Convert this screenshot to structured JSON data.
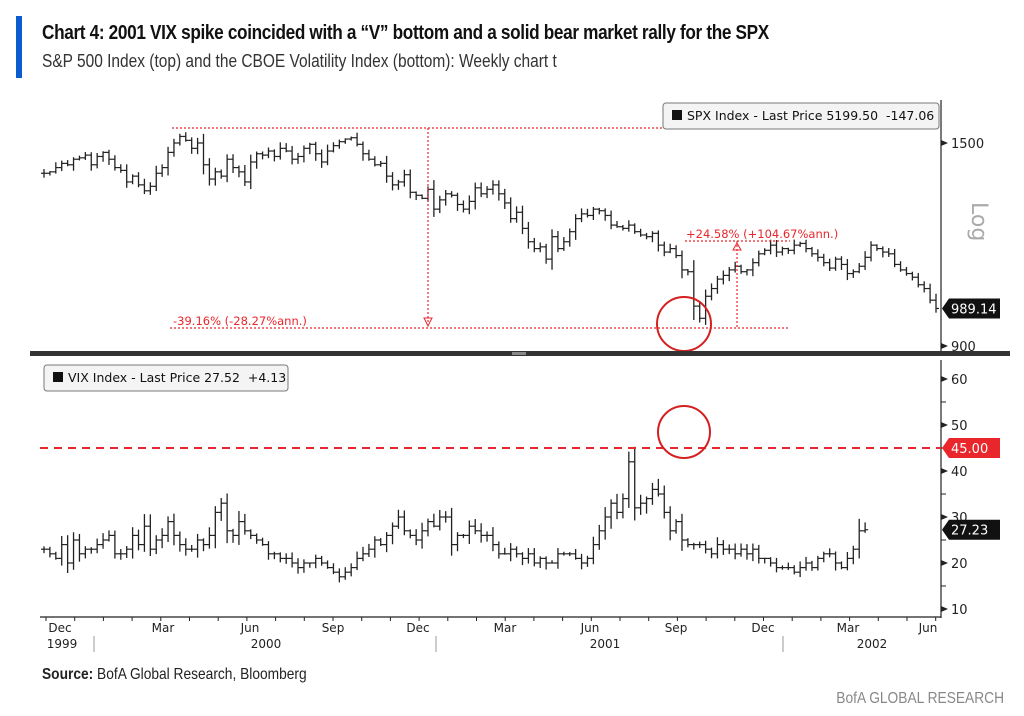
{
  "header": {
    "title": "Chart 4: 2001 VIX spike coincided with a “V” bottom and a solid bear market rally for the SPX",
    "subtitle": "S&P 500 Index (top) and the CBOE Volatility Index (bottom): Weekly chart t"
  },
  "footer": {
    "source_label": "Source:",
    "source_text": " BofA Global Research, Bloomberg",
    "brand": "BofA GLOBAL RESEARCH"
  },
  "colors": {
    "accent": "#0b5ccf",
    "annotation_red": "#e8262b",
    "bars": "#222222"
  },
  "chart_data": [
    {
      "type": "ohlc",
      "name": "SPX Index",
      "legend": "SPX Index - Last Price 5199.50  -147.06",
      "scale": "log",
      "scale_label": "Log",
      "ylim": [
        880,
        1600
      ],
      "yticks": [
        900,
        1500
      ],
      "last_value_label": "989.14",
      "x_start": "1999-11-19",
      "frequency": "weekly",
      "closes": [
        1390,
        1395,
        1410,
        1425,
        1420,
        1440,
        1445,
        1455,
        1420,
        1450,
        1465,
        1440,
        1410,
        1400,
        1360,
        1380,
        1350,
        1330,
        1345,
        1390,
        1410,
        1465,
        1500,
        1525,
        1510,
        1480,
        1500,
        1420,
        1370,
        1395,
        1380,
        1440,
        1410,
        1395,
        1360,
        1430,
        1460,
        1455,
        1470,
        1450,
        1480,
        1470,
        1440,
        1450,
        1480,
        1495,
        1460,
        1430,
        1470,
        1490,
        1505,
        1515,
        1520,
        1495,
        1460,
        1440,
        1420,
        1425,
        1380,
        1350,
        1360,
        1385,
        1325,
        1315,
        1305,
        1335,
        1270,
        1300,
        1320,
        1315,
        1285,
        1270,
        1295,
        1340,
        1320,
        1335,
        1350,
        1320,
        1290,
        1240,
        1260,
        1210,
        1170,
        1150,
        1155,
        1120,
        1185,
        1150,
        1170,
        1200,
        1240,
        1255,
        1250,
        1270,
        1265,
        1250,
        1220,
        1215,
        1210,
        1220,
        1200,
        1190,
        1185,
        1195,
        1160,
        1140,
        1150,
        1130,
        1090,
        1085,
        995,
        965,
        1020,
        1040,
        1065,
        1075,
        1090,
        1100,
        1085,
        1090,
        1110,
        1135,
        1145,
        1160,
        1140,
        1150,
        1145,
        1160,
        1165,
        1150,
        1135,
        1125,
        1110,
        1095,
        1120,
        1105,
        1080,
        1085,
        1100,
        1125,
        1160,
        1150,
        1140,
        1135,
        1105,
        1090,
        1080,
        1070,
        1050,
        1040,
        1010,
        989.14
      ],
      "annotations": [
        {
          "label": "-39.16% (-28.27%ann.)",
          "from": 1553,
          "to": 944
        },
        {
          "label": "+24.58% (+104.67%ann.)",
          "from": 944,
          "to": 1176
        }
      ],
      "highlight_circle": "Sep 2001 low"
    },
    {
      "type": "ohlc",
      "name": "VIX Index",
      "legend": "VIX Index - Last Price 27.52  +4.13",
      "scale": "linear",
      "ylim": [
        8,
        63
      ],
      "yticks": [
        10,
        20,
        30,
        40,
        50,
        60
      ],
      "reference_line": {
        "value": 45.0,
        "label": "45.00",
        "style": "dashed"
      },
      "last_value_label": "27.23",
      "x_start": "1999-11-19",
      "frequency": "weekly",
      "closes": [
        23,
        22,
        21,
        24,
        20,
        25,
        22,
        23,
        23,
        24,
        25,
        26,
        22,
        22,
        23,
        26,
        24,
        28,
        23,
        25,
        26,
        29,
        26,
        24,
        23,
        23,
        25,
        24,
        26,
        31,
        33,
        27,
        26,
        29,
        27,
        26,
        25,
        24,
        22,
        22,
        21,
        21,
        20,
        19,
        20,
        20,
        21,
        20,
        19,
        18,
        17,
        18,
        19,
        21,
        22,
        23,
        25,
        24,
        26,
        28,
        30,
        27,
        26,
        25,
        27,
        29,
        28,
        30,
        30,
        24,
        26,
        26,
        28,
        27,
        26,
        26,
        24,
        22,
        22,
        23,
        22,
        21,
        22,
        20,
        21,
        20,
        20,
        22,
        22,
        22,
        21,
        20,
        21,
        24,
        27,
        30,
        33,
        31,
        34,
        42,
        32,
        33,
        34,
        36,
        35,
        31,
        27,
        29,
        25,
        24,
        24,
        24,
        23,
        22,
        24,
        23,
        23,
        22,
        23,
        22,
        23,
        21,
        21,
        20,
        19,
        19,
        19,
        18,
        19,
        20,
        19,
        21,
        22,
        22,
        20,
        19,
        21,
        23,
        27,
        27.23
      ],
      "highlight_circle": "Sep 2001 spike"
    }
  ],
  "x_axis": {
    "months": [
      "Dec",
      "Mar",
      "Jun",
      "Sep",
      "Dec",
      "Mar",
      "Jun",
      "Sep",
      "Dec",
      "Mar",
      "Jun"
    ],
    "years": [
      "1999",
      "2000",
      "2001",
      "2002"
    ]
  }
}
